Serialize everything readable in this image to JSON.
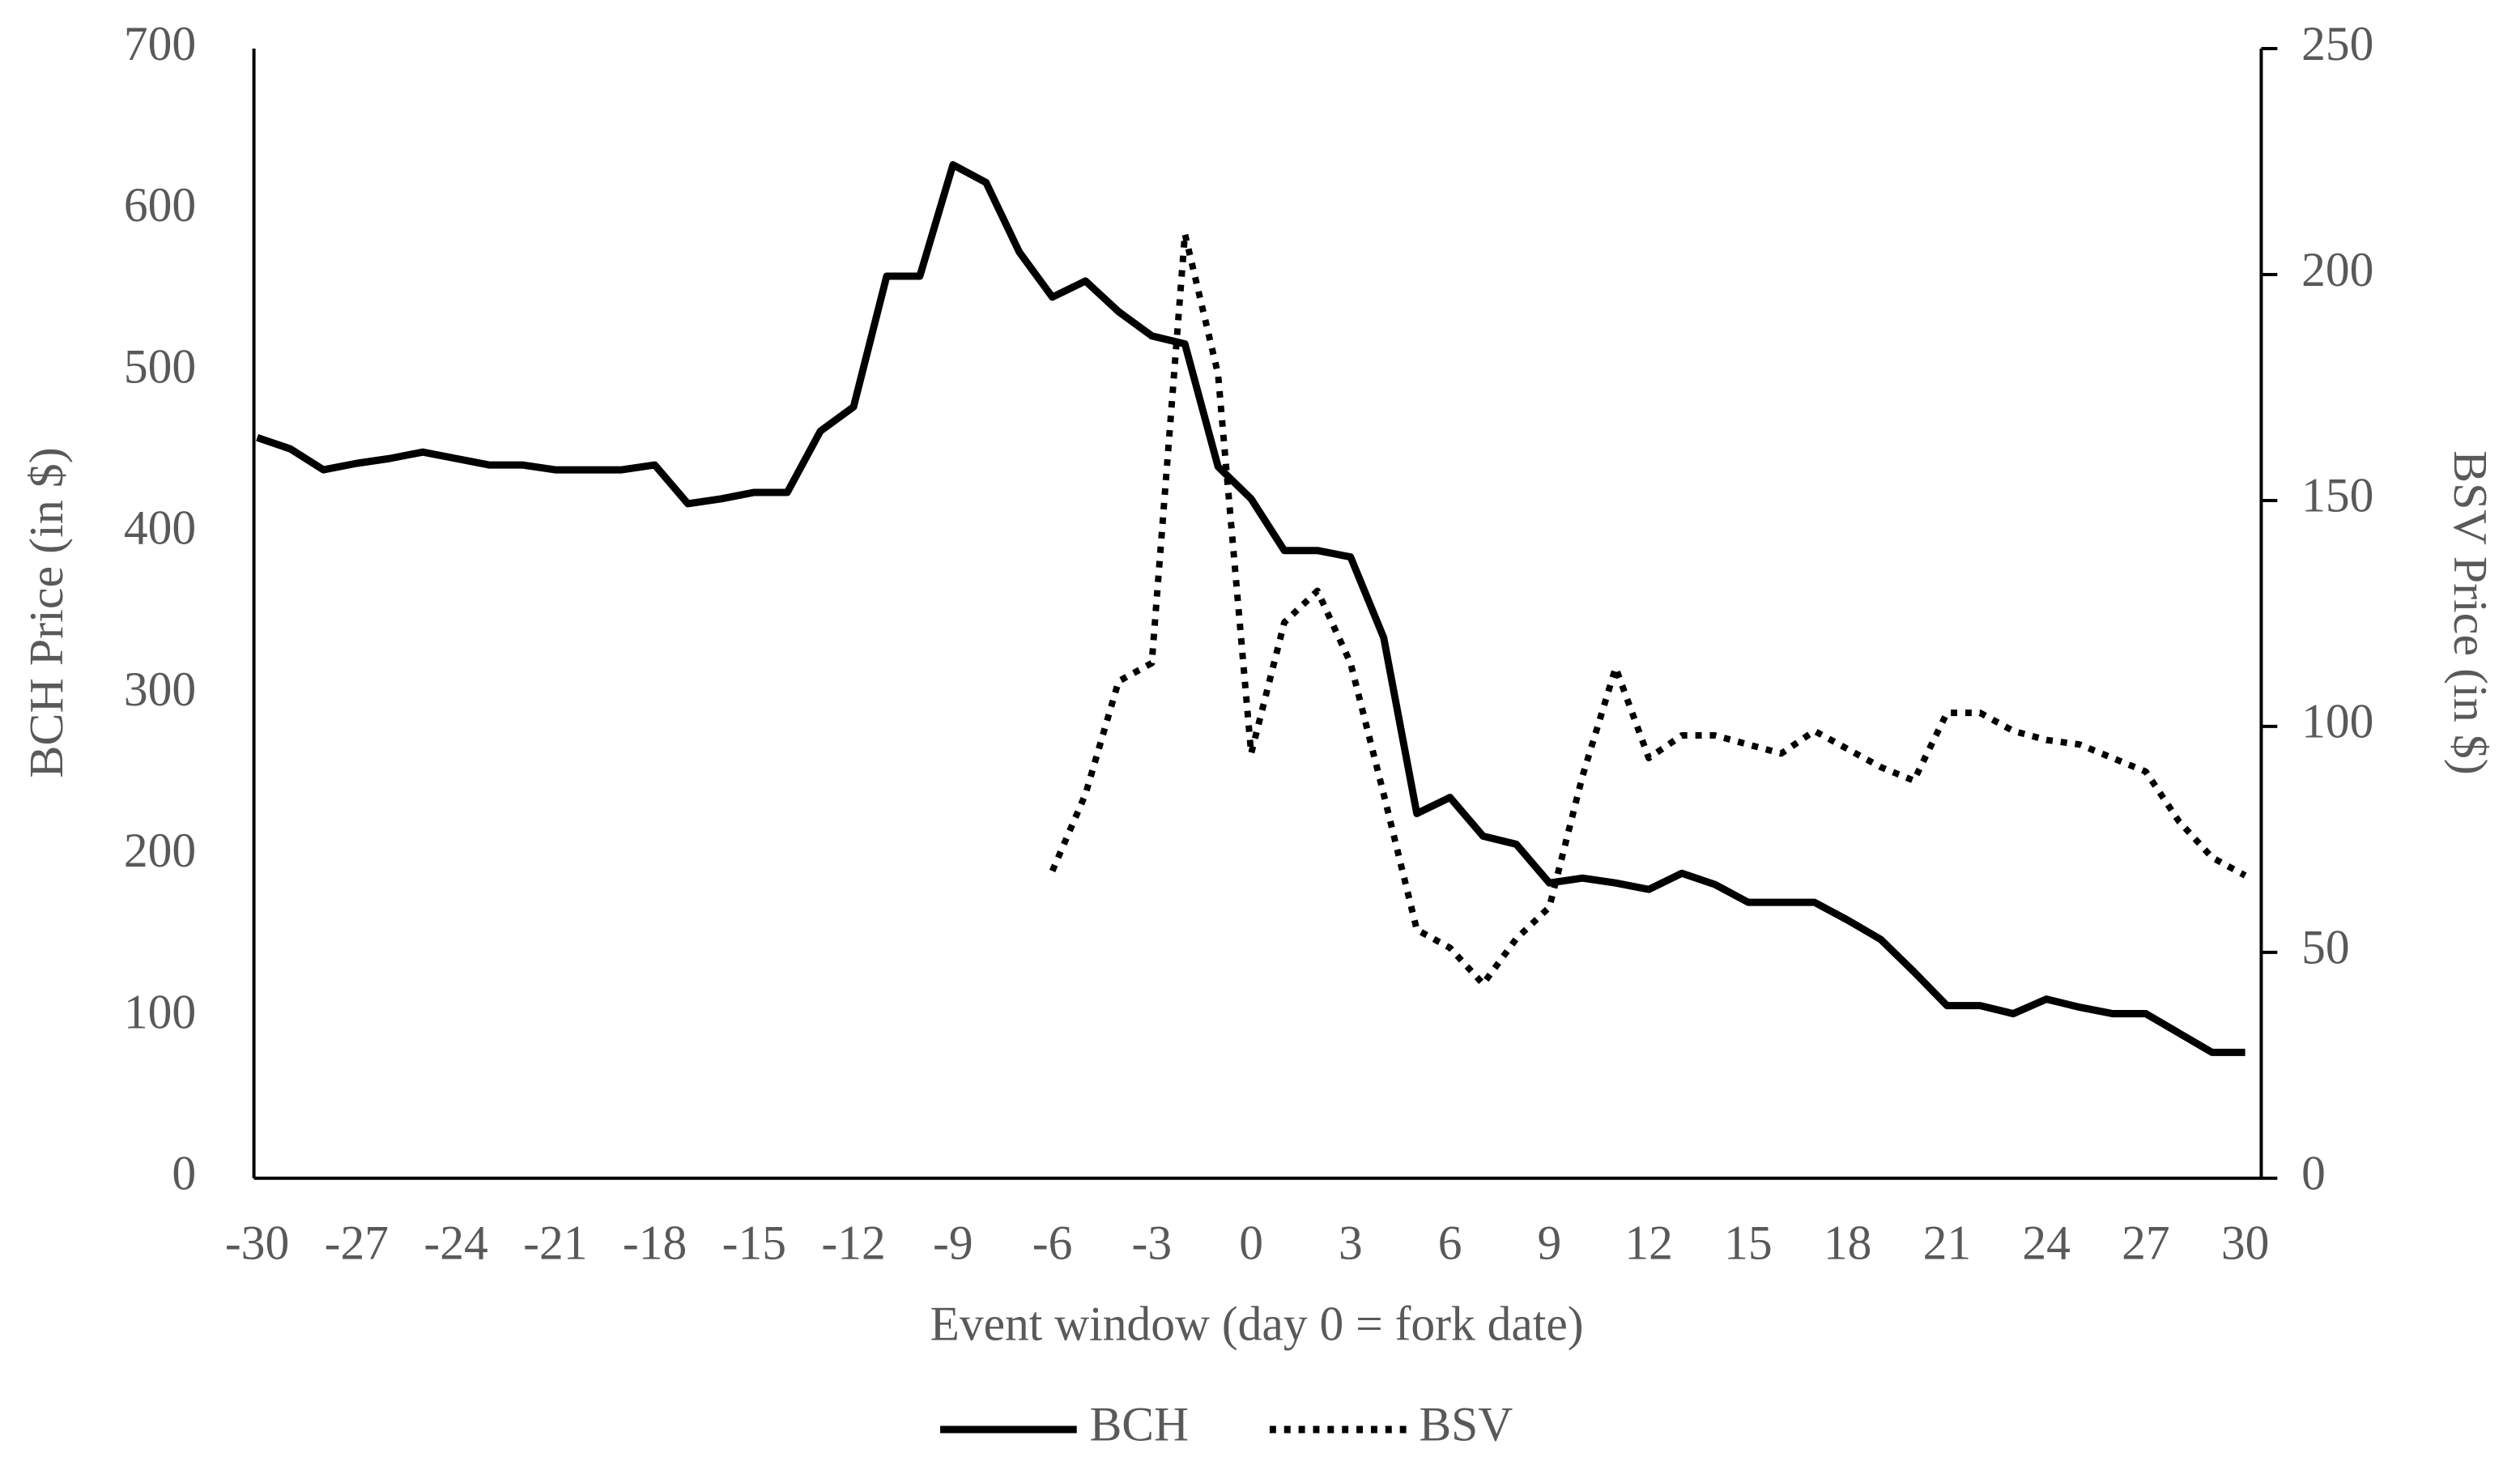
{
  "chart_data": {
    "type": "line",
    "x": [
      -30,
      -29,
      -28,
      -27,
      -26,
      -25,
      -24,
      -23,
      -22,
      -21,
      -20,
      -19,
      -18,
      -17,
      -16,
      -15,
      -14,
      -13,
      -12,
      -11,
      -10,
      -9,
      -8,
      -7,
      -6,
      -5,
      -4,
      -3,
      -2,
      -1,
      0,
      1,
      2,
      3,
      4,
      5,
      6,
      7,
      8,
      9,
      10,
      11,
      12,
      13,
      14,
      15,
      16,
      17,
      18,
      19,
      20,
      21,
      22,
      23,
      24,
      25,
      26,
      27,
      28,
      29,
      30
    ],
    "series": [
      {
        "name": "BCH",
        "color": "#000000",
        "style": "solid",
        "values": [
          459,
          452,
          439,
          443,
          446,
          450,
          446,
          442,
          442,
          439,
          439,
          439,
          442,
          418,
          421,
          425,
          425,
          463,
          478,
          559,
          559,
          628,
          617,
          574,
          546,
          556,
          537,
          522,
          517,
          441,
          421,
          389,
          389,
          385,
          335,
          226,
          236,
          212,
          207,
          183,
          186,
          183,
          179,
          189,
          182,
          171,
          171,
          171,
          160,
          148,
          128,
          107,
          107,
          102,
          111,
          106,
          102,
          102,
          90,
          78,
          78
        ]
      },
      {
        "name": "BSV",
        "color": "#000000",
        "style": "dotted",
        "axis": "y2",
        "values": [
          null,
          null,
          null,
          null,
          null,
          null,
          null,
          null,
          null,
          null,
          null,
          null,
          null,
          null,
          null,
          null,
          null,
          null,
          null,
          null,
          null,
          null,
          null,
          null,
          68,
          85,
          110,
          114,
          209,
          178,
          94,
          123,
          130,
          114,
          85,
          55,
          51,
          43,
          53,
          60,
          89,
          113,
          93,
          98,
          98,
          96,
          94,
          99,
          95,
          91,
          88,
          103,
          103,
          99,
          97,
          96,
          93,
          90,
          79,
          71,
          67
        ]
      }
    ],
    "xlim": [
      -30,
      30
    ],
    "xticks": [
      -30,
      -27,
      -24,
      -21,
      -18,
      -15,
      -12,
      -9,
      -6,
      -3,
      0,
      3,
      6,
      9,
      12,
      15,
      18,
      21,
      24,
      27,
      30
    ],
    "ylim": [
      0,
      700
    ],
    "yticks": [
      0,
      100,
      200,
      300,
      400,
      500,
      600,
      700
    ],
    "y2lim": [
      0,
      250
    ],
    "y2ticks": [
      0,
      50,
      100,
      150,
      200,
      250
    ],
    "x_label": "Event window (day 0 = fork date)",
    "y_label": "BCH Price (in $)",
    "y2_label": "BSV Price (in $)",
    "legend": "bottom"
  }
}
